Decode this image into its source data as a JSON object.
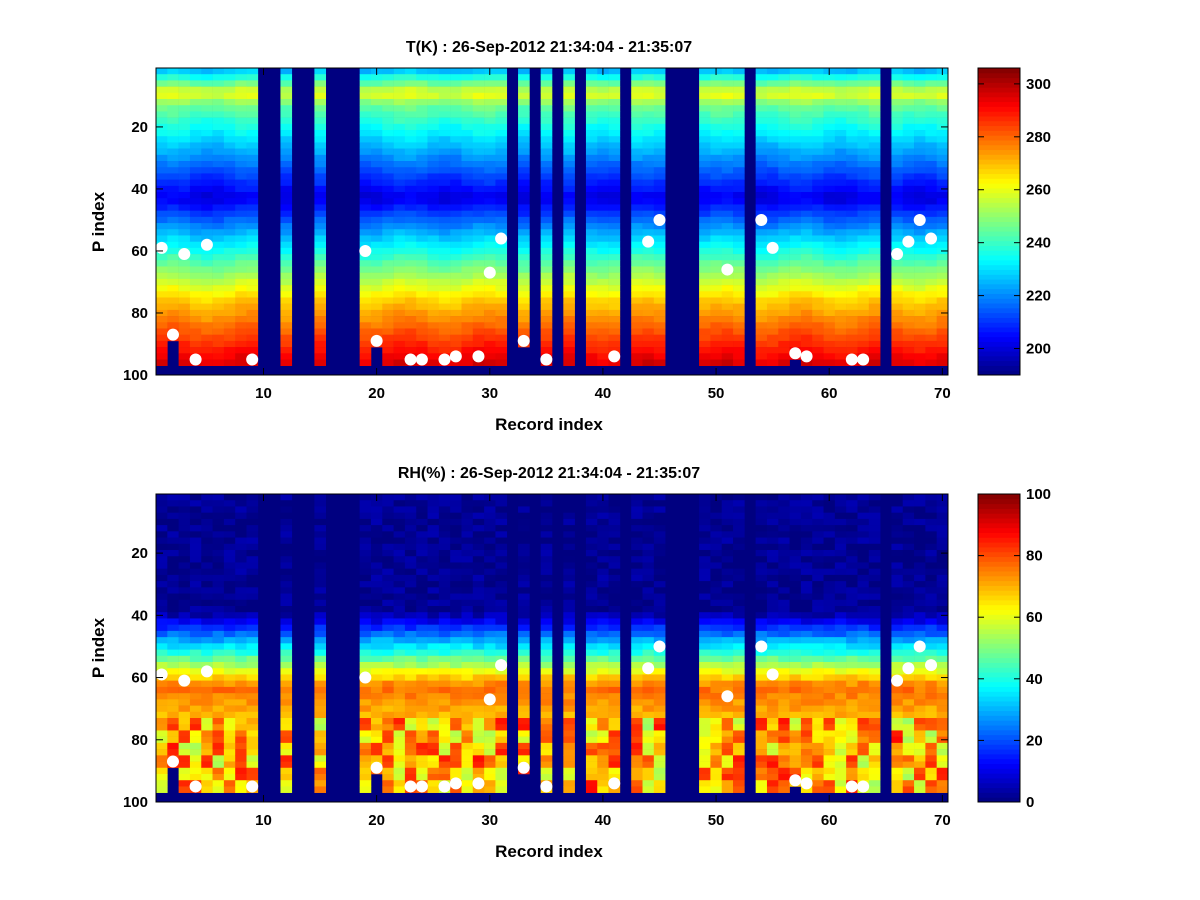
{
  "chart_data": [
    {
      "type": "heatmap",
      "title": "T(K) : 26-Sep-2012 21:34:04 - 21:35:07",
      "xlabel": "Record index",
      "ylabel": "P index",
      "xlim": [
        0.5,
        70.5
      ],
      "ylim": [
        1,
        100
      ],
      "y_reversed": true,
      "xticks": [
        10,
        20,
        30,
        40,
        50,
        60,
        70
      ],
      "yticks": [
        20,
        40,
        60,
        80,
        100
      ],
      "colorbar": {
        "min": 190,
        "max": 306,
        "ticks": [
          200,
          220,
          240,
          260,
          280,
          300
        ],
        "colormap": "jet"
      },
      "variable": "temperature",
      "empty_records": [
        10,
        11,
        13,
        14,
        16,
        17,
        18,
        32,
        34,
        36,
        38,
        42,
        46,
        47,
        48,
        53,
        65
      ],
      "surface_marker_levels": [
        [
          1,
          59
        ],
        [
          2,
          87
        ],
        [
          3,
          61
        ],
        [
          4,
          95
        ],
        [
          5,
          58
        ],
        [
          9,
          95
        ],
        [
          19,
          60
        ],
        [
          20,
          89
        ],
        [
          23,
          95
        ],
        [
          24,
          95
        ],
        [
          26,
          95
        ],
        [
          27,
          94
        ],
        [
          29,
          94
        ],
        [
          30,
          67
        ],
        [
          31,
          56
        ],
        [
          33,
          89
        ],
        [
          35,
          95
        ],
        [
          41,
          94
        ],
        [
          44,
          57
        ],
        [
          45,
          50
        ],
        [
          51,
          66
        ],
        [
          54,
          50
        ],
        [
          55,
          59
        ],
        [
          57,
          93
        ],
        [
          58,
          94
        ],
        [
          62,
          95
        ],
        [
          63,
          95
        ],
        [
          66,
          61
        ],
        [
          67,
          57
        ],
        [
          68,
          50
        ],
        [
          69,
          56
        ]
      ],
      "profile_levels": {
        "warm_band_top": 8,
        "cold_minimum": 42,
        "surface_warm_max": 296
      }
    },
    {
      "type": "heatmap",
      "title": "RH(%) : 26-Sep-2012 21:34:04 - 21:35:07",
      "xlabel": "Record index",
      "ylabel": "P index",
      "xlim": [
        0.5,
        70.5
      ],
      "ylim": [
        1,
        100
      ],
      "y_reversed": true,
      "xticks": [
        10,
        20,
        30,
        40,
        50,
        60,
        70
      ],
      "yticks": [
        20,
        40,
        60,
        80,
        100
      ],
      "colorbar": {
        "min": 0,
        "max": 100,
        "ticks": [
          0,
          20,
          40,
          60,
          80,
          100
        ],
        "colormap": "jet"
      },
      "variable": "relative_humidity",
      "empty_records": [
        10,
        11,
        13,
        14,
        16,
        17,
        18,
        32,
        34,
        36,
        38,
        42,
        46,
        47,
        48,
        53,
        65
      ],
      "surface_marker_levels": [
        [
          1,
          59
        ],
        [
          2,
          87
        ],
        [
          3,
          61
        ],
        [
          4,
          95
        ],
        [
          5,
          58
        ],
        [
          9,
          95
        ],
        [
          19,
          60
        ],
        [
          20,
          89
        ],
        [
          23,
          95
        ],
        [
          24,
          95
        ],
        [
          26,
          95
        ],
        [
          27,
          94
        ],
        [
          29,
          94
        ],
        [
          30,
          67
        ],
        [
          31,
          56
        ],
        [
          33,
          89
        ],
        [
          35,
          95
        ],
        [
          41,
          94
        ],
        [
          44,
          57
        ],
        [
          45,
          50
        ],
        [
          51,
          66
        ],
        [
          54,
          50
        ],
        [
          55,
          59
        ],
        [
          57,
          93
        ],
        [
          58,
          94
        ],
        [
          62,
          95
        ],
        [
          63,
          95
        ],
        [
          66,
          61
        ],
        [
          67,
          57
        ],
        [
          68,
          50
        ],
        [
          69,
          56
        ]
      ],
      "profile_levels": {
        "moist_onset": 38,
        "moist_peak": 62,
        "moist_max": 80
      }
    }
  ]
}
